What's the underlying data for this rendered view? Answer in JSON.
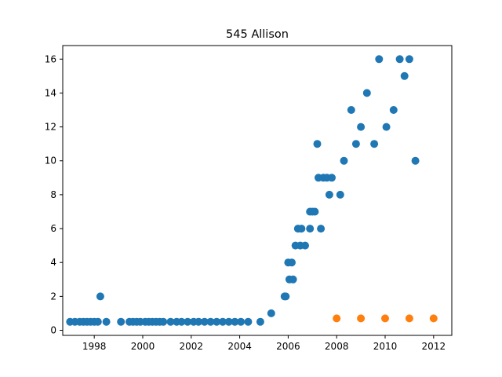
{
  "chart_data": {
    "type": "scatter",
    "title": "545 Allison",
    "xlabel": "",
    "ylabel": "",
    "xlim": [
      1996.7,
      2012.75
    ],
    "ylim": [
      -0.3,
      16.8
    ],
    "xticks": [
      1998,
      2000,
      2002,
      2004,
      2006,
      2008,
      2010,
      2012
    ],
    "yticks": [
      0,
      2,
      4,
      6,
      8,
      10,
      12,
      14,
      16
    ],
    "grid": false,
    "legend": "none",
    "series": [
      {
        "color": "#1f77b4",
        "points": [
          [
            1997.0,
            0.5
          ],
          [
            1997.2,
            0.5
          ],
          [
            1997.4,
            0.5
          ],
          [
            1997.55,
            0.5
          ],
          [
            1997.7,
            0.5
          ],
          [
            1997.85,
            0.5
          ],
          [
            1998.0,
            0.5
          ],
          [
            1998.15,
            0.5
          ],
          [
            1998.25,
            2.0
          ],
          [
            1998.5,
            0.5
          ],
          [
            1999.1,
            0.5
          ],
          [
            1999.45,
            0.5
          ],
          [
            1999.6,
            0.5
          ],
          [
            1999.75,
            0.5
          ],
          [
            1999.9,
            0.5
          ],
          [
            2000.1,
            0.5
          ],
          [
            2000.25,
            0.5
          ],
          [
            2000.4,
            0.5
          ],
          [
            2000.55,
            0.5
          ],
          [
            2000.7,
            0.5
          ],
          [
            2000.85,
            0.5
          ],
          [
            2001.15,
            0.5
          ],
          [
            2001.4,
            0.5
          ],
          [
            2001.6,
            0.5
          ],
          [
            2001.85,
            0.5
          ],
          [
            2002.1,
            0.5
          ],
          [
            2002.3,
            0.5
          ],
          [
            2002.55,
            0.5
          ],
          [
            2002.8,
            0.5
          ],
          [
            2003.05,
            0.5
          ],
          [
            2003.3,
            0.5
          ],
          [
            2003.55,
            0.5
          ],
          [
            2003.8,
            0.5
          ],
          [
            2004.05,
            0.5
          ],
          [
            2004.35,
            0.5
          ],
          [
            2004.85,
            0.5
          ],
          [
            2005.3,
            1.0
          ],
          [
            2005.85,
            2.0
          ],
          [
            2005.9,
            2.0
          ],
          [
            2006.0,
            4.0
          ],
          [
            2006.05,
            3.0
          ],
          [
            2006.15,
            4.0
          ],
          [
            2006.2,
            3.0
          ],
          [
            2006.3,
            5.0
          ],
          [
            2006.4,
            6.0
          ],
          [
            2006.5,
            5.0
          ],
          [
            2006.55,
            6.0
          ],
          [
            2006.7,
            5.0
          ],
          [
            2006.9,
            7.0
          ],
          [
            2006.9,
            6.0
          ],
          [
            2007.0,
            7.0
          ],
          [
            2007.1,
            7.0
          ],
          [
            2007.2,
            11.0
          ],
          [
            2007.25,
            9.0
          ],
          [
            2007.35,
            6.0
          ],
          [
            2007.45,
            9.0
          ],
          [
            2007.6,
            9.0
          ],
          [
            2007.7,
            8.0
          ],
          [
            2007.8,
            9.0
          ],
          [
            2008.15,
            8.0
          ],
          [
            2008.3,
            10.0
          ],
          [
            2008.6,
            13.0
          ],
          [
            2008.8,
            11.0
          ],
          [
            2009.0,
            12.0
          ],
          [
            2009.25,
            14.0
          ],
          [
            2009.55,
            11.0
          ],
          [
            2009.75,
            16.0
          ],
          [
            2010.05,
            12.0
          ],
          [
            2010.35,
            13.0
          ],
          [
            2010.6,
            16.0
          ],
          [
            2010.8,
            15.0
          ],
          [
            2011.0,
            16.0
          ],
          [
            2011.25,
            10.0
          ]
        ]
      },
      {
        "color": "#ff7f0e",
        "points": [
          [
            2008.0,
            0.7
          ],
          [
            2009.0,
            0.7
          ],
          [
            2010.0,
            0.7
          ],
          [
            2011.0,
            0.7
          ],
          [
            2012.0,
            0.7
          ]
        ]
      }
    ]
  }
}
